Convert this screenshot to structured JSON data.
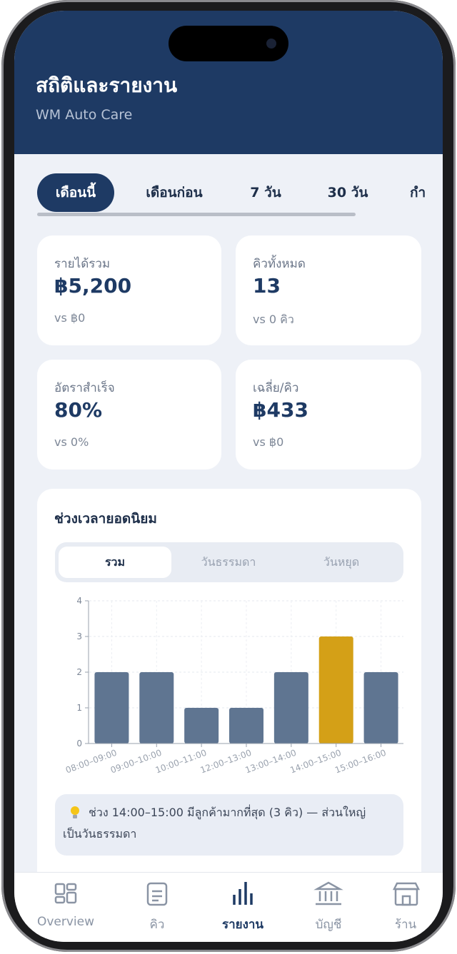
{
  "header": {
    "title": "สถิติและรายงาน",
    "subtitle": "WM Auto Care"
  },
  "period_tabs": [
    "เดือนนี้",
    "เดือนก่อน",
    "7 วัน",
    "30 วัน",
    "กำ"
  ],
  "stats": [
    {
      "label": "รายได้รวม",
      "value": "฿5,200",
      "compare": "vs ฿0"
    },
    {
      "label": "คิวทั้งหมด",
      "value": "13",
      "compare": "vs 0 คิว"
    },
    {
      "label": "อัตราสำเร็จ",
      "value": "80%",
      "compare": "vs 0%"
    },
    {
      "label": "เฉลี่ย/คิว",
      "value": "฿433",
      "compare": "vs ฿0"
    }
  ],
  "peak_section": {
    "title": "ช่วงเวลายอดนิยม",
    "tabs": [
      "รวม",
      "วันธรรมดา",
      "วันหยุด"
    ],
    "insight": "ช่วง 14:00–15:00 มีลูกค้ามากที่สุด (3 คิว) — ส่วนใหญ่เป็นวันธรรมดา"
  },
  "chart_data": {
    "type": "bar",
    "categories": [
      "08:00–09:00",
      "09:00–10:00",
      "10:00–11:00",
      "12:00–13:00",
      "13:00–14:00",
      "14:00–15:00",
      "15:00–16:00"
    ],
    "values": [
      2,
      2,
      1,
      1,
      2,
      3,
      2
    ],
    "colors": [
      "#5f7591",
      "#5f7591",
      "#5f7591",
      "#5f7591",
      "#5f7591",
      "#d4a017",
      "#5f7591"
    ],
    "ylim": [
      0,
      4
    ],
    "yticks": [
      0,
      1,
      2,
      3,
      4
    ],
    "grid": true
  },
  "nav": [
    "Overview",
    "คิว",
    "รายงาน",
    "บัญชี",
    "ร้าน"
  ]
}
